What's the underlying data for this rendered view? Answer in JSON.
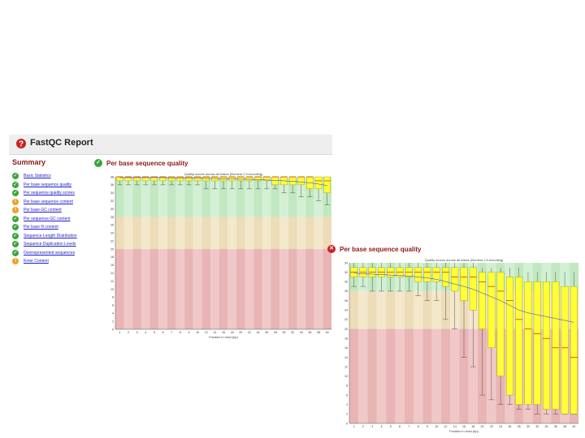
{
  "report": {
    "title": "FastQC Report",
    "summary_title": "Summary",
    "modules": [
      {
        "label": "Basic Statistics",
        "status": "pass"
      },
      {
        "label": "Per base sequence quality",
        "status": "pass"
      },
      {
        "label": "Per sequence quality scores",
        "status": "pass"
      },
      {
        "label": "Per base sequence content",
        "status": "warn"
      },
      {
        "label": "Per base GC content",
        "status": "warn"
      },
      {
        "label": "Per sequence GC content",
        "status": "pass"
      },
      {
        "label": "Per base N content",
        "status": "pass"
      },
      {
        "label": "Sequence Length Distribution",
        "status": "pass"
      },
      {
        "label": "Sequence Duplication Levels",
        "status": "pass"
      },
      {
        "label": "Overrepresented sequences",
        "status": "pass"
      },
      {
        "label": "Kmer Content",
        "status": "warn"
      }
    ]
  },
  "panels": [
    {
      "id": "good",
      "status": "pass",
      "title": "Per base sequence quality"
    },
    {
      "id": "bad",
      "status": "fail",
      "title": "Per base sequence quality"
    }
  ],
  "colors": {
    "green_zone": "#c2e8c2",
    "green_zone_alt": "#d4f0d4",
    "orange_zone": "#ecdcb8",
    "orange_zone_alt": "#f3e8cc",
    "red_zone": "#e8b4b4",
    "red_zone_alt": "#f0c8c8",
    "box": "#ffff33",
    "box_stroke": "#777700",
    "median": "#cc0000",
    "mean": "#3333cc"
  },
  "chart_data": [
    {
      "type": "box",
      "title": "Quality scores across all bases (Illumina 1.5 encoding)",
      "xlabel": "Position in read (bp)",
      "ylabel": "",
      "x_ticks": [
        "1",
        "2",
        "3",
        "4",
        "5",
        "6",
        "7",
        "8",
        "9",
        "10",
        "12",
        "14",
        "16",
        "18",
        "20",
        "22",
        "24",
        "26",
        "28",
        "30",
        "32",
        "34",
        "36",
        "38",
        "40"
      ],
      "y_ticks": [
        0,
        2,
        4,
        6,
        8,
        10,
        12,
        14,
        16,
        18,
        20,
        22,
        24,
        26,
        28,
        30,
        32,
        34,
        36,
        38
      ],
      "ylim": [
        0,
        38
      ],
      "zones": {
        "red": [
          0,
          20
        ],
        "orange": [
          20,
          28
        ],
        "green": [
          28,
          38
        ]
      },
      "series": {
        "q10": [
          36,
          36,
          36,
          36,
          36,
          36,
          36,
          36,
          36,
          36,
          35,
          35,
          35,
          35,
          35,
          35,
          35,
          35,
          35,
          34,
          34,
          33,
          33,
          32,
          31
        ],
        "q25": [
          37,
          37,
          37,
          37,
          37,
          37,
          37,
          37,
          37,
          37,
          37,
          37,
          37,
          37,
          37,
          37,
          37,
          37,
          36,
          36,
          36,
          36,
          35,
          35,
          34
        ],
        "median": [
          38,
          38,
          38,
          38,
          38,
          38,
          38,
          38,
          38,
          38,
          38,
          38,
          38,
          38,
          38,
          38,
          38,
          38,
          38,
          38,
          38,
          38,
          38,
          37,
          37
        ],
        "q75": [
          38,
          38,
          38,
          38,
          38,
          38,
          38,
          38,
          38,
          38,
          38,
          38,
          38,
          38,
          38,
          38,
          38,
          38,
          38,
          38,
          38,
          38,
          38,
          38,
          38
        ],
        "q90": [
          38,
          38,
          38,
          38,
          38,
          38,
          38,
          38,
          38,
          38,
          38,
          38,
          38,
          38,
          38,
          38,
          38,
          38,
          38,
          38,
          38,
          38,
          38,
          38,
          38
        ],
        "mean": [
          37.8,
          37.8,
          37.8,
          37.8,
          37.8,
          37.8,
          37.7,
          37.7,
          37.7,
          37.7,
          37.6,
          37.6,
          37.5,
          37.5,
          37.4,
          37.4,
          37.3,
          37.2,
          37.1,
          37,
          36.9,
          36.7,
          36.5,
          36.2,
          35.8
        ]
      }
    },
    {
      "type": "box",
      "title": "Quality scores across all bases (Illumina 1.5 encoding)",
      "xlabel": "Position in read (bp)",
      "ylabel": "",
      "x_ticks": [
        "1",
        "2",
        "3",
        "4",
        "5",
        "6",
        "7",
        "8",
        "9",
        "10",
        "12",
        "14",
        "16",
        "18",
        "20",
        "22",
        "24",
        "26",
        "28",
        "30",
        "32",
        "34",
        "36",
        "38",
        "40"
      ],
      "y_ticks": [
        0,
        2,
        4,
        6,
        8,
        10,
        12,
        14,
        16,
        18,
        20,
        22,
        24,
        26,
        28,
        30,
        32,
        34
      ],
      "ylim": [
        0,
        34
      ],
      "zones": {
        "red": [
          0,
          20
        ],
        "orange": [
          20,
          28
        ],
        "green": [
          28,
          34
        ]
      },
      "series": {
        "q10": [
          29,
          29,
          28,
          28,
          28,
          28,
          28,
          27,
          26,
          26,
          22,
          20,
          14,
          12,
          6,
          5,
          4,
          4,
          3,
          3,
          2,
          2,
          2,
          2,
          2
        ],
        "q25": [
          31,
          31,
          31,
          31,
          31,
          31,
          31,
          30,
          30,
          30,
          29,
          28,
          26,
          24,
          20,
          16,
          10,
          6,
          4,
          4,
          4,
          3,
          3,
          2,
          2
        ],
        "median": [
          32,
          32,
          32,
          32,
          32,
          32,
          32,
          32,
          32,
          32,
          32,
          31,
          31,
          31,
          30,
          29,
          28,
          26,
          22,
          20,
          19,
          18,
          16,
          16,
          14
        ],
        "q75": [
          33,
          33,
          33,
          33,
          33,
          33,
          33,
          33,
          33,
          33,
          33,
          33,
          33,
          33,
          32,
          32,
          32,
          31,
          31,
          30,
          30,
          30,
          30,
          29,
          29
        ],
        "q90": [
          34,
          34,
          34,
          34,
          34,
          34,
          34,
          34,
          34,
          34,
          34,
          34,
          34,
          34,
          33,
          33,
          33,
          33,
          33,
          32,
          32,
          32,
          32,
          32,
          32
        ],
        "mean": [
          31.8,
          31.7,
          31.6,
          31.5,
          31.4,
          31.3,
          31.2,
          31,
          30.8,
          30.5,
          30,
          29.5,
          29,
          28.4,
          27.6,
          26.8,
          26,
          25,
          24,
          23.4,
          23,
          22.6,
          22.2,
          21.8,
          21.4
        ]
      }
    }
  ]
}
